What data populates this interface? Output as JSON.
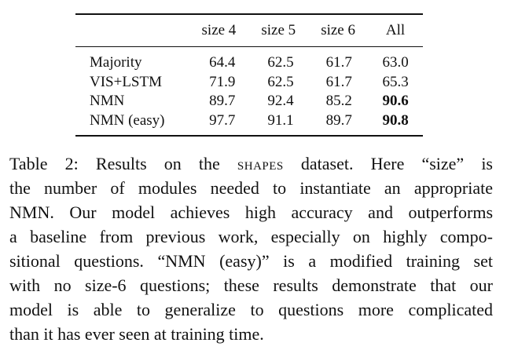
{
  "table": {
    "columns": [
      "",
      "size 4",
      "size 5",
      "size 6",
      "All"
    ],
    "rows": [
      {
        "label": "Majority",
        "values": [
          "64.4",
          "62.5",
          "61.7",
          "63.0"
        ],
        "bold_last": false
      },
      {
        "label": "VIS+LSTM",
        "values": [
          "71.9",
          "62.5",
          "61.7",
          "65.3"
        ],
        "bold_last": false
      },
      {
        "label": "NMN",
        "values": [
          "89.7",
          "92.4",
          "85.2",
          "90.6"
        ],
        "bold_last": true
      },
      {
        "label": "NMN (easy)",
        "values": [
          "97.7",
          "91.1",
          "89.7",
          "90.8"
        ],
        "bold_last": true
      }
    ]
  },
  "caption": {
    "line1_a": "Table 2:  Results on the ",
    "line1_sc": "shapes",
    "line1_b": " dataset.  Here “size” is",
    "line2": "the number of modules needed to instantiate an appropriate",
    "line3": "NMN. Our model achieves high accuracy and outperforms",
    "line4": "a baseline from previous work, especially on highly compo-",
    "line5": "sitional questions. “NMN (easy)” is a modified training set",
    "line6": "with no size-6 questions; these results demonstrate that our",
    "line7": "model is able to generalize to questions more complicated",
    "line8": "than it has ever seen at training time."
  }
}
